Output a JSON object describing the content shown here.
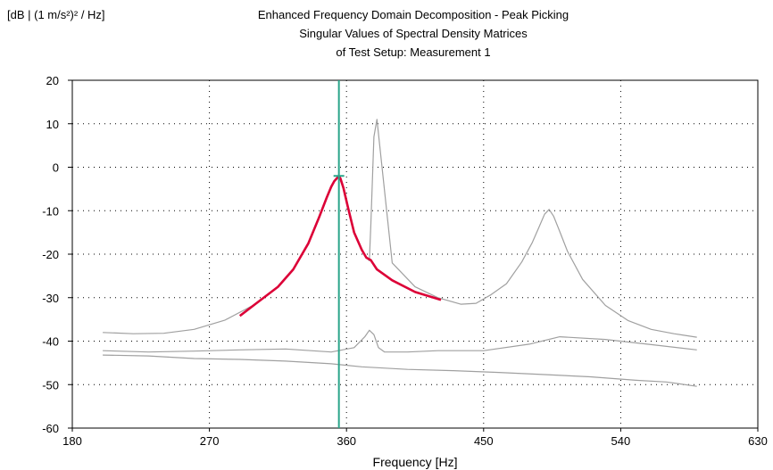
{
  "chart_data": {
    "type": "line",
    "title_lines": [
      "Enhanced Frequency Domain Decomposition - Peak Picking",
      "Singular Values of Spectral Density Matrices",
      "of Test Setup: Measurement 1"
    ],
    "ylabel": "[dB | (1 m/s²)² / Hz]",
    "xlabel": "Frequency [Hz]",
    "xlim": [
      180,
      630
    ],
    "ylim": [
      -60,
      20
    ],
    "x_ticks": [
      180,
      270,
      360,
      450,
      540,
      630
    ],
    "y_ticks": [
      20,
      10,
      0,
      -10,
      -20,
      -30,
      -40,
      -50,
      -60
    ],
    "grid": "dotted",
    "cursor_x": 355,
    "peak": {
      "x": 355,
      "y": -2
    },
    "colors": {
      "singular_values": "#a0a0a0",
      "selected_band": "#dc0037",
      "cursor": "#2aa58a",
      "grid": "#000000"
    },
    "series": [
      {
        "role": "sv1",
        "x": [
          200,
          220,
          240,
          260,
          280,
          300,
          315,
          325,
          335,
          342,
          347,
          350,
          352,
          354,
          355,
          356,
          358,
          361,
          365,
          370,
          373,
          375,
          376,
          378,
          380,
          390,
          405,
          420,
          435,
          445,
          455,
          465,
          475,
          482,
          487,
          490,
          493,
          496,
          500,
          505,
          515,
          530,
          545,
          560,
          575,
          590
        ],
        "y": [
          -38,
          -38.3,
          -38.2,
          -37.3,
          -35.2,
          -31.5,
          -27.5,
          -23.5,
          -17.5,
          -11.5,
          -7,
          -4.5,
          -3.2,
          -2.4,
          -2,
          -2.6,
          -4.8,
          -9.3,
          -15,
          -19,
          -20.8,
          -21.5,
          -13,
          7,
          11,
          -22,
          -27.5,
          -30,
          -31.5,
          -31.3,
          -29.3,
          -26.8,
          -21.8,
          -17.3,
          -13.3,
          -10.8,
          -9.7,
          -11.3,
          -14.8,
          -19.3,
          -25.8,
          -31.8,
          -35.3,
          -37.3,
          -38.3,
          -39.1
        ]
      },
      {
        "role": "sv2",
        "x": [
          200,
          230,
          260,
          290,
          320,
          350,
          365,
          372,
          375,
          378,
          381,
          385,
          400,
          420,
          450,
          480,
          500,
          530,
          560,
          590
        ],
        "y": [
          -42.2,
          -42.5,
          -42.3,
          -42,
          -41.8,
          -42.5,
          -41.5,
          -39,
          -37.5,
          -38.5,
          -41.5,
          -42.5,
          -42.5,
          -42.2,
          -42.2,
          -40.7,
          -39,
          -39.6,
          -40.8,
          -42
        ]
      },
      {
        "role": "sv3",
        "x": [
          200,
          230,
          260,
          290,
          320,
          350,
          370,
          400,
          430,
          460,
          490,
          520,
          550,
          570,
          590
        ],
        "y": [
          -43.2,
          -43.4,
          -44,
          -44.2,
          -44.6,
          -45.2,
          -45.9,
          -46.5,
          -46.8,
          -47.2,
          -47.7,
          -48.2,
          -49,
          -49.4,
          -50.4
        ]
      },
      {
        "role": "selected",
        "x": [
          290,
          300,
          315,
          325,
          335,
          342,
          347,
          350,
          352,
          354,
          355,
          356,
          358,
          361,
          365,
          370,
          373,
          376,
          380,
          390,
          405,
          422
        ],
        "y": [
          -34.2,
          -31.5,
          -27.5,
          -23.5,
          -17.5,
          -11.5,
          -7,
          -4.5,
          -3.2,
          -2.4,
          -2,
          -2.6,
          -4.8,
          -9.3,
          -15,
          -19,
          -20.8,
          -21.4,
          -23.5,
          -26,
          -28.7,
          -30.5
        ]
      }
    ]
  }
}
